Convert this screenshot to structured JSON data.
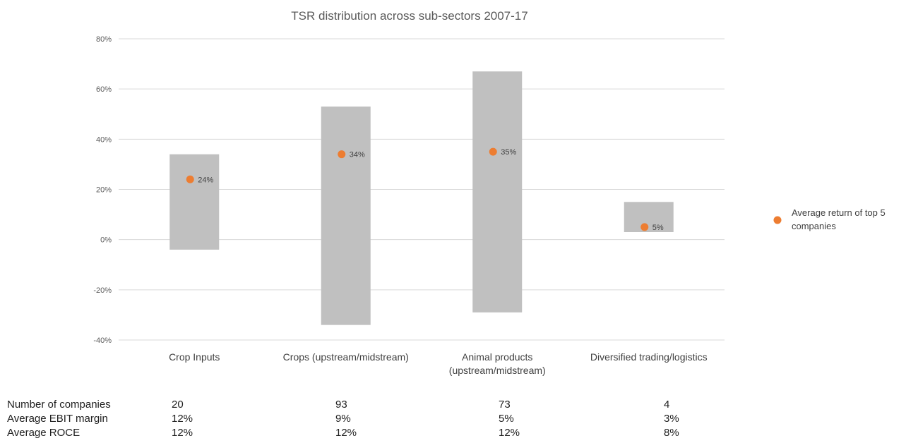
{
  "chart_data": {
    "type": "bar",
    "subtype": "floating-range-with-markers",
    "title": "TSR distribution across sub-sectors 2007-17",
    "ylim": [
      -40,
      80
    ],
    "yticks": [
      "80%",
      "60%",
      "40%",
      "20%",
      "0%",
      "-20%",
      "-40%"
    ],
    "ytick_values": [
      80,
      60,
      40,
      20,
      0,
      -20,
      -40
    ],
    "grid": true,
    "legend_position": "right",
    "categories": [
      [
        "Crop Inputs"
      ],
      [
        "Crops (upstream/midstream)"
      ],
      [
        "Animal products",
        "(upstream/midstream)"
      ],
      [
        "Diversified trading/logistics"
      ]
    ],
    "range_min": [
      -4,
      -34,
      -29,
      3
    ],
    "range_max": [
      34,
      53,
      67,
      15
    ],
    "series": [
      {
        "name": "Average return of top 5 companies",
        "values": [
          24,
          34,
          35,
          5
        ],
        "labels": [
          "24%",
          "34%",
          "35%",
          "5%"
        ]
      }
    ],
    "legend_lines": [
      "Average return of top 5",
      "companies"
    ],
    "colors": {
      "range_bar": "#c0c0c0",
      "marker": "#ed7d31",
      "grid": "#d9d9d9"
    }
  },
  "stats_table": {
    "rows": [
      {
        "label": "Number of companies",
        "values": [
          "20",
          "93",
          "73",
          "4"
        ]
      },
      {
        "label": "Average EBIT margin",
        "values": [
          "12%",
          "9%",
          "5%",
          "3%"
        ]
      },
      {
        "label": "Average ROCE",
        "values": [
          "12%",
          "12%",
          "12%",
          "8%"
        ]
      }
    ]
  }
}
